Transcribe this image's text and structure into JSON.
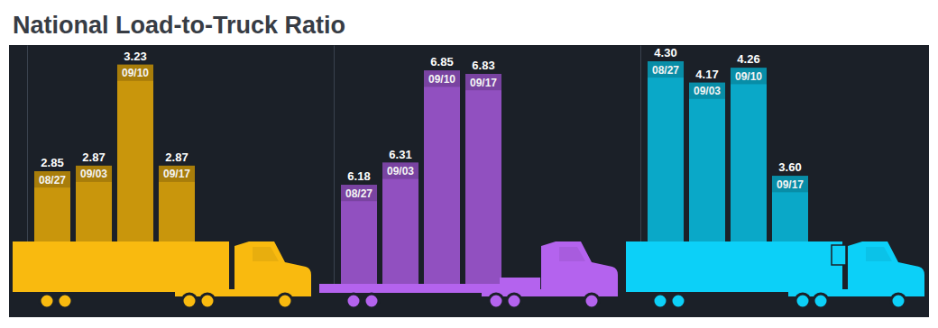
{
  "title": "National Load-to-Truck Ratio",
  "chart_data": [
    {
      "type": "bar",
      "categories": [
        "08/27",
        "09/03",
        "09/10",
        "09/17"
      ],
      "values": [
        2.85,
        2.87,
        3.23,
        2.87
      ],
      "color": "#c9960c",
      "ylim": [
        2.6,
        3.3
      ],
      "data_labels": true,
      "tick_labels": false
    },
    {
      "type": "bar",
      "categories": [
        "08/27",
        "09/03",
        "09/10",
        "09/17"
      ],
      "values": [
        6.18,
        6.31,
        6.85,
        6.83
      ],
      "color": "#9150c0",
      "ylim": [
        5.6,
        7.0
      ],
      "data_labels": true,
      "tick_labels": false
    },
    {
      "type": "bar",
      "categories": [
        "08/27",
        "09/03",
        "09/10",
        "09/17"
      ],
      "values": [
        4.3,
        4.17,
        4.26,
        3.6
      ],
      "value_labels": [
        "4.30",
        "4.17",
        "4.26",
        "3.60"
      ],
      "color": "#0aa8c8",
      "ylim": [
        3.2,
        4.4
      ],
      "data_labels": true,
      "tick_labels": false
    }
  ]
}
